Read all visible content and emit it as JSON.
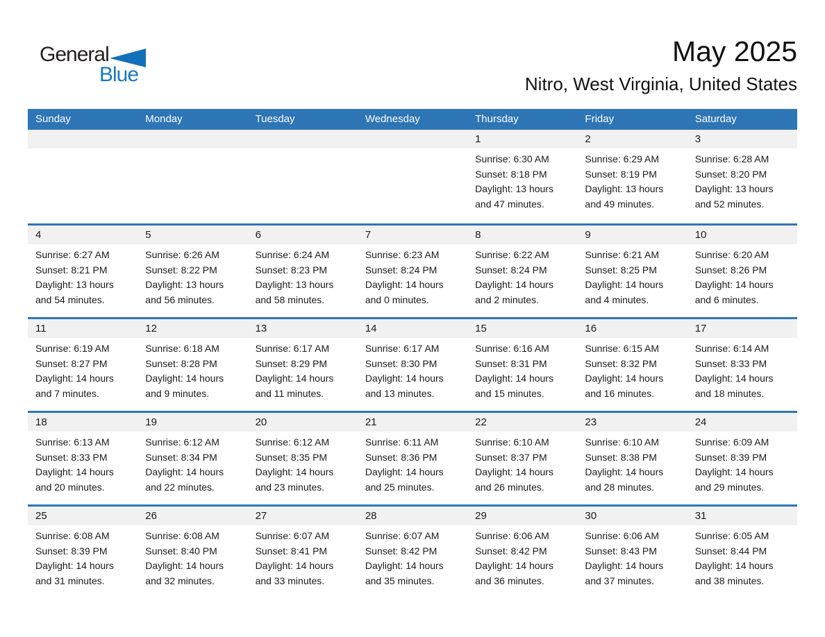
{
  "logo": {
    "general": "General",
    "blue": "Blue"
  },
  "header": {
    "title": "May 2025",
    "subtitle": "Nitro, West Virginia, United States"
  },
  "colors": {
    "header_bg": "#2E75B6",
    "row_divider": "#2E75B6",
    "day_band_bg": "#F1F1F1",
    "logo_blue": "#1779C4",
    "logo_dark": "#231F20",
    "weekday_text": "#FFFFFF"
  },
  "calendar": {
    "weekdays": [
      "Sunday",
      "Monday",
      "Tuesday",
      "Wednesday",
      "Thursday",
      "Friday",
      "Saturday"
    ],
    "weeks": [
      [
        null,
        null,
        null,
        null,
        {
          "day": 1,
          "lines": [
            "Sunrise: 6:30 AM",
            "Sunset: 8:18 PM",
            "Daylight: 13 hours",
            "and 47 minutes."
          ]
        },
        {
          "day": 2,
          "lines": [
            "Sunrise: 6:29 AM",
            "Sunset: 8:19 PM",
            "Daylight: 13 hours",
            "and 49 minutes."
          ]
        },
        {
          "day": 3,
          "lines": [
            "Sunrise: 6:28 AM",
            "Sunset: 8:20 PM",
            "Daylight: 13 hours",
            "and 52 minutes."
          ]
        }
      ],
      [
        {
          "day": 4,
          "lines": [
            "Sunrise: 6:27 AM",
            "Sunset: 8:21 PM",
            "Daylight: 13 hours",
            "and 54 minutes."
          ]
        },
        {
          "day": 5,
          "lines": [
            "Sunrise: 6:26 AM",
            "Sunset: 8:22 PM",
            "Daylight: 13 hours",
            "and 56 minutes."
          ]
        },
        {
          "day": 6,
          "lines": [
            "Sunrise: 6:24 AM",
            "Sunset: 8:23 PM",
            "Daylight: 13 hours",
            "and 58 minutes."
          ]
        },
        {
          "day": 7,
          "lines": [
            "Sunrise: 6:23 AM",
            "Sunset: 8:24 PM",
            "Daylight: 14 hours",
            "and 0 minutes."
          ]
        },
        {
          "day": 8,
          "lines": [
            "Sunrise: 6:22 AM",
            "Sunset: 8:24 PM",
            "Daylight: 14 hours",
            "and 2 minutes."
          ]
        },
        {
          "day": 9,
          "lines": [
            "Sunrise: 6:21 AM",
            "Sunset: 8:25 PM",
            "Daylight: 14 hours",
            "and 4 minutes."
          ]
        },
        {
          "day": 10,
          "lines": [
            "Sunrise: 6:20 AM",
            "Sunset: 8:26 PM",
            "Daylight: 14 hours",
            "and 6 minutes."
          ]
        }
      ],
      [
        {
          "day": 11,
          "lines": [
            "Sunrise: 6:19 AM",
            "Sunset: 8:27 PM",
            "Daylight: 14 hours",
            "and 7 minutes."
          ]
        },
        {
          "day": 12,
          "lines": [
            "Sunrise: 6:18 AM",
            "Sunset: 8:28 PM",
            "Daylight: 14 hours",
            "and 9 minutes."
          ]
        },
        {
          "day": 13,
          "lines": [
            "Sunrise: 6:17 AM",
            "Sunset: 8:29 PM",
            "Daylight: 14 hours",
            "and 11 minutes."
          ]
        },
        {
          "day": 14,
          "lines": [
            "Sunrise: 6:17 AM",
            "Sunset: 8:30 PM",
            "Daylight: 14 hours",
            "and 13 minutes."
          ]
        },
        {
          "day": 15,
          "lines": [
            "Sunrise: 6:16 AM",
            "Sunset: 8:31 PM",
            "Daylight: 14 hours",
            "and 15 minutes."
          ]
        },
        {
          "day": 16,
          "lines": [
            "Sunrise: 6:15 AM",
            "Sunset: 8:32 PM",
            "Daylight: 14 hours",
            "and 16 minutes."
          ]
        },
        {
          "day": 17,
          "lines": [
            "Sunrise: 6:14 AM",
            "Sunset: 8:33 PM",
            "Daylight: 14 hours",
            "and 18 minutes."
          ]
        }
      ],
      [
        {
          "day": 18,
          "lines": [
            "Sunrise: 6:13 AM",
            "Sunset: 8:33 PM",
            "Daylight: 14 hours",
            "and 20 minutes."
          ]
        },
        {
          "day": 19,
          "lines": [
            "Sunrise: 6:12 AM",
            "Sunset: 8:34 PM",
            "Daylight: 14 hours",
            "and 22 minutes."
          ]
        },
        {
          "day": 20,
          "lines": [
            "Sunrise: 6:12 AM",
            "Sunset: 8:35 PM",
            "Daylight: 14 hours",
            "and 23 minutes."
          ]
        },
        {
          "day": 21,
          "lines": [
            "Sunrise: 6:11 AM",
            "Sunset: 8:36 PM",
            "Daylight: 14 hours",
            "and 25 minutes."
          ]
        },
        {
          "day": 22,
          "lines": [
            "Sunrise: 6:10 AM",
            "Sunset: 8:37 PM",
            "Daylight: 14 hours",
            "and 26 minutes."
          ]
        },
        {
          "day": 23,
          "lines": [
            "Sunrise: 6:10 AM",
            "Sunset: 8:38 PM",
            "Daylight: 14 hours",
            "and 28 minutes."
          ]
        },
        {
          "day": 24,
          "lines": [
            "Sunrise: 6:09 AM",
            "Sunset: 8:39 PM",
            "Daylight: 14 hours",
            "and 29 minutes."
          ]
        }
      ],
      [
        {
          "day": 25,
          "lines": [
            "Sunrise: 6:08 AM",
            "Sunset: 8:39 PM",
            "Daylight: 14 hours",
            "and 31 minutes."
          ]
        },
        {
          "day": 26,
          "lines": [
            "Sunrise: 6:08 AM",
            "Sunset: 8:40 PM",
            "Daylight: 14 hours",
            "and 32 minutes."
          ]
        },
        {
          "day": 27,
          "lines": [
            "Sunrise: 6:07 AM",
            "Sunset: 8:41 PM",
            "Daylight: 14 hours",
            "and 33 minutes."
          ]
        },
        {
          "day": 28,
          "lines": [
            "Sunrise: 6:07 AM",
            "Sunset: 8:42 PM",
            "Daylight: 14 hours",
            "and 35 minutes."
          ]
        },
        {
          "day": 29,
          "lines": [
            "Sunrise: 6:06 AM",
            "Sunset: 8:42 PM",
            "Daylight: 14 hours",
            "and 36 minutes."
          ]
        },
        {
          "day": 30,
          "lines": [
            "Sunrise: 6:06 AM",
            "Sunset: 8:43 PM",
            "Daylight: 14 hours",
            "and 37 minutes."
          ]
        },
        {
          "day": 31,
          "lines": [
            "Sunrise: 6:05 AM",
            "Sunset: 8:44 PM",
            "Daylight: 14 hours",
            "and 38 minutes."
          ]
        }
      ]
    ]
  }
}
